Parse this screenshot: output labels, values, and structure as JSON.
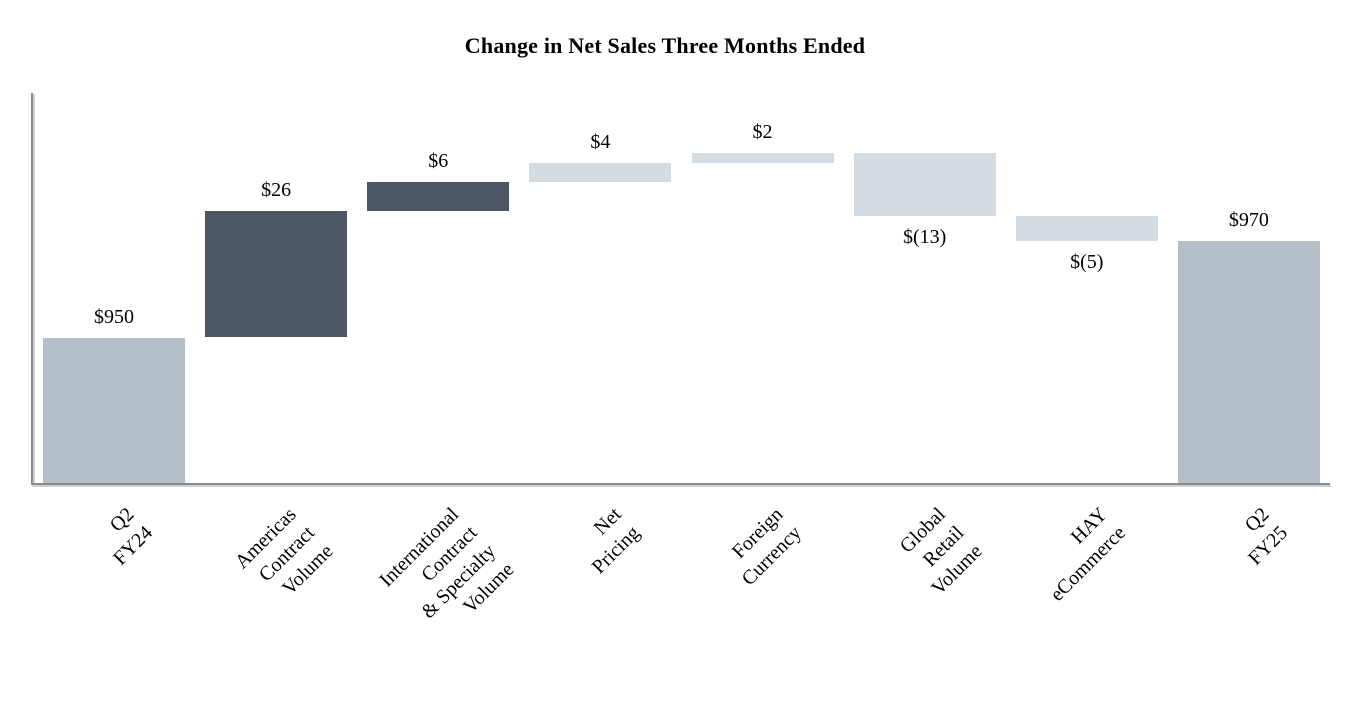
{
  "title": "Change in Net Sales Three Months Ended",
  "chart_data": {
    "type": "bar",
    "subtype": "waterfall",
    "title": "Change in Net Sales Three Months Ended",
    "xlabel": "",
    "ylabel": "",
    "grid": false,
    "legend": false,
    "value_axis_ticks_visible": false,
    "value_axis_visible_range_estimate": [
      920,
      1000
    ],
    "categories": [
      "Q2 FY24",
      "Americas\nContract Volume",
      "International Contract\n& Specialty Volume",
      "Net Pricing",
      "Foreign Currency",
      "Global Retail Volume",
      "HAY eCommerce",
      "Q2 FY25"
    ],
    "bars": [
      {
        "name": "bar-q2-fy24",
        "label": "Q2 FY24",
        "kind": "total",
        "value": 950,
        "display": "$950",
        "color": "#b4bfc9"
      },
      {
        "name": "bar-americas-contract-volume",
        "label": "Americas\nContract Volume",
        "kind": "delta",
        "value": 26,
        "display": "$26",
        "color": "#4d5663"
      },
      {
        "name": "bar-international-contract-specialty-volume",
        "label": "International Contract\n& Specialty Volume",
        "kind": "delta",
        "value": 6,
        "display": "$6",
        "color": "#4d5663"
      },
      {
        "name": "bar-net-pricing",
        "label": "Net Pricing",
        "kind": "delta",
        "value": 4,
        "display": "$4",
        "color": "#d5dce1"
      },
      {
        "name": "bar-foreign-currency",
        "label": "Foreign Currency",
        "kind": "delta",
        "value": 2,
        "display": "$2",
        "color": "#d5dce1"
      },
      {
        "name": "bar-global-retail-volume",
        "label": "Global Retail Volume",
        "kind": "delta",
        "value": -13,
        "display": "$(13)",
        "color": "#d5dce1"
      },
      {
        "name": "bar-hay-ecommerce",
        "label": "HAY eCommerce",
        "kind": "delta",
        "value": -5,
        "display": "$(5)",
        "color": "#d5dce1"
      },
      {
        "name": "bar-q2-fy25",
        "label": "Q2 FY25",
        "kind": "total",
        "value": 970,
        "display": "$970",
        "color": "#b4bfc9"
      }
    ],
    "colors": {
      "total_bar": "#b4bfc9",
      "dark_delta_bar": "#4d5663",
      "light_delta_bar": "#d5dce1",
      "axis_line": "#8a8a8a",
      "text": "#000000"
    }
  }
}
